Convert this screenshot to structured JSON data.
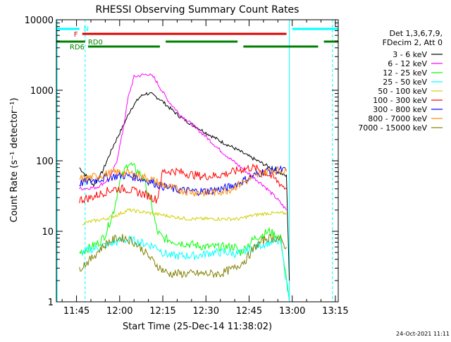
{
  "chart_data": {
    "type": "line",
    "title": "RHESSI Observing Summary Count Rates",
    "xlabel": "Start Time (25-Dec-14 11:38:02)",
    "ylabel": "Count Rate (s⁻¹ detector⁻¹)",
    "yscale": "log",
    "ylim": [
      1,
      10000
    ],
    "xlim": [
      "11:38",
      "13:16"
    ],
    "x_ticks": [
      "11:45",
      "12:00",
      "12:15",
      "12:30",
      "12:45",
      "13:00",
      "13:15"
    ],
    "y_ticks": [
      "1",
      "10",
      "100",
      "1000",
      "10000"
    ],
    "grid": false,
    "legend_position": "right",
    "legend_header": [
      "Det 1,3,6,7,9,",
      "FDecim 2, Att 0"
    ],
    "footer": "24-Oct-2021 11:11",
    "series": [
      {
        "name": "3 - 6 keV",
        "color": "#000000",
        "x": [
          "11:38",
          "11:46",
          "11:51",
          "11:54",
          "11:56",
          "11:58",
          "12:01",
          "12:04",
          "12:07",
          "12:09",
          "12:11",
          "12:14",
          "12:17",
          "12:21",
          "12:25",
          "12:30",
          "12:35",
          "12:40",
          "12:45",
          "12:50",
          "12:55",
          "12:58",
          "12:59"
        ],
        "y": [
          null,
          80,
          45,
          70,
          110,
          170,
          300,
          550,
          800,
          900,
          880,
          750,
          580,
          420,
          330,
          250,
          190,
          150,
          115,
          90,
          70,
          60,
          2
        ]
      },
      {
        "name": "6 - 12 keV",
        "color": "#ff00ff",
        "x": [
          "11:46",
          "11:52",
          "11:55",
          "11:57",
          "11:59",
          "12:01",
          "12:03",
          "12:05",
          "12:08",
          "12:10",
          "12:12",
          "12:14",
          "12:17",
          "12:21",
          "12:25",
          "12:30",
          "12:35",
          "12:40",
          "12:45",
          "12:50",
          "12:55",
          "12:58"
        ],
        "y": [
          40,
          42,
          50,
          60,
          100,
          250,
          800,
          1550,
          1650,
          1700,
          1500,
          1100,
          700,
          450,
          330,
          220,
          140,
          95,
          65,
          45,
          28,
          20
        ]
      },
      {
        "name": "12 - 25 keV",
        "color": "#00ff00",
        "x": [
          "11:46",
          "11:50",
          "11:53",
          "11:55",
          "11:58",
          "12:00",
          "12:03",
          "12:05",
          "12:08",
          "12:11",
          "12:13",
          "12:15",
          "12:20",
          "12:25",
          "12:30",
          "12:35",
          "12:40",
          "12:42",
          "12:47",
          "12:52",
          "12:56",
          "12:59"
        ],
        "y": [
          5,
          6,
          7,
          9,
          20,
          50,
          95,
          80,
          60,
          25,
          10,
          8,
          7,
          6.5,
          6,
          6,
          6,
          5,
          8,
          10,
          8,
          1
        ]
      },
      {
        "name": "25 - 50 keV",
        "color": "#00ffff",
        "x": [
          "11:47",
          "11:50",
          "11:53",
          "11:56",
          "11:59",
          "12:01",
          "12:04",
          "12:07",
          "12:10",
          "12:13",
          "12:15",
          "12:18",
          "12:22",
          "12:27",
          "12:32",
          "12:37",
          "12:41",
          "12:43",
          "12:47",
          "12:52",
          "12:56",
          "12:59"
        ],
        "y": [
          5,
          5.5,
          6,
          6.5,
          7,
          7.5,
          7.5,
          7,
          6.5,
          6,
          5,
          4.5,
          4.5,
          4.5,
          5,
          5,
          4.8,
          5,
          6,
          7,
          7,
          1
        ]
      },
      {
        "name": "50 - 100 keV",
        "color": "#d0d000",
        "x": [
          "11:47",
          "11:51",
          "11:55",
          "11:59",
          "12:03",
          "12:07",
          "12:11",
          "12:15",
          "12:19",
          "12:24",
          "12:29",
          "12:34",
          "12:38",
          "12:42",
          "12:44",
          "12:47",
          "12:51",
          "12:55",
          "12:58"
        ],
        "y": [
          13,
          14,
          15,
          17,
          20,
          19,
          18,
          17,
          16,
          15,
          15,
          15,
          15,
          15,
          16,
          17,
          18,
          18,
          18
        ]
      },
      {
        "name": "100 - 300 keV",
        "color": "#ff0000",
        "x": [
          "11:46",
          "11:50",
          "11:54",
          "11:58",
          "12:02",
          "12:06",
          "12:10",
          "12:13",
          "12:15",
          "12:19",
          "12:24",
          "12:29",
          "12:34",
          "12:38",
          "12:42",
          "12:46",
          "12:50",
          "12:54",
          "12:58"
        ],
        "y": [
          28,
          30,
          35,
          40,
          40,
          36,
          32,
          28,
          70,
          72,
          65,
          60,
          62,
          67,
          75,
          80,
          72,
          55,
          40
        ]
      },
      {
        "name": "300 - 800 keV",
        "color": "#0000ff",
        "x": [
          "11:46",
          "11:50",
          "11:54",
          "11:58",
          "12:02",
          "12:06",
          "12:10",
          "12:14",
          "12:18",
          "12:22",
          "12:26",
          "12:30",
          "12:34",
          "12:38",
          "12:42",
          "12:46",
          "12:50",
          "12:54",
          "12:58"
        ],
        "y": [
          48,
          52,
          56,
          60,
          62,
          58,
          52,
          45,
          40,
          38,
          37,
          37,
          39,
          42,
          50,
          60,
          70,
          75,
          72
        ]
      },
      {
        "name": "800 - 7000 keV",
        "color": "#ff8800",
        "x": [
          "11:46",
          "11:50",
          "11:54",
          "11:58",
          "12:02",
          "12:06",
          "12:10",
          "12:14",
          "12:18",
          "12:22",
          "12:26",
          "12:30",
          "12:34",
          "12:38",
          "12:42",
          "12:46",
          "12:50",
          "12:54",
          "12:58"
        ],
        "y": [
          55,
          58,
          63,
          68,
          68,
          63,
          56,
          48,
          41,
          38,
          36,
          35,
          36,
          39,
          47,
          57,
          68,
          74,
          70
        ]
      },
      {
        "name": "7000 - 15000 keV",
        "color": "#808000",
        "x": [
          "11:46",
          "11:50",
          "11:53",
          "11:56",
          "11:59",
          "12:02",
          "12:05",
          "12:08",
          "12:11",
          "12:14",
          "12:17",
          "12:21",
          "12:25",
          "12:30",
          "12:35",
          "12:40",
          "12:44",
          "12:47",
          "12:51",
          "12:55",
          "12:58"
        ],
        "y": [
          3,
          4,
          5.5,
          7,
          8,
          8,
          7,
          5.5,
          4,
          3,
          2.5,
          2.5,
          2.5,
          2.5,
          2.5,
          3,
          4,
          6,
          8,
          8,
          6
        ]
      }
    ],
    "state_bars": [
      {
        "label": "N",
        "color": "#00ffff",
        "segments": [
          [
            "11:38",
            "11:46"
          ],
          [
            "13:00",
            "13:16"
          ]
        ]
      },
      {
        "label": "F",
        "color": "#dd0000",
        "segments": [
          [
            "11:47",
            "12:58"
          ]
        ]
      },
      {
        "label": "RD0",
        "color": "#008000",
        "segments": [
          [
            "11:38",
            "11:48"
          ],
          [
            "12:16",
            "12:41"
          ],
          [
            "13:11",
            "13:16"
          ]
        ]
      },
      {
        "label": "RD6",
        "color": "#008000",
        "segments": [
          [
            "11:49",
            "12:14"
          ],
          [
            "12:43",
            "13:09"
          ]
        ]
      }
    ],
    "vertical_markers": [
      {
        "color": "#00ffff",
        "style": "solid",
        "x": "11:38"
      },
      {
        "color": "#00ffff",
        "style": "dashed",
        "x": "11:48"
      },
      {
        "color": "#00ffff",
        "style": "solid",
        "x": "12:59"
      },
      {
        "color": "#00ffff",
        "style": "dashed",
        "x": "13:14"
      }
    ]
  }
}
